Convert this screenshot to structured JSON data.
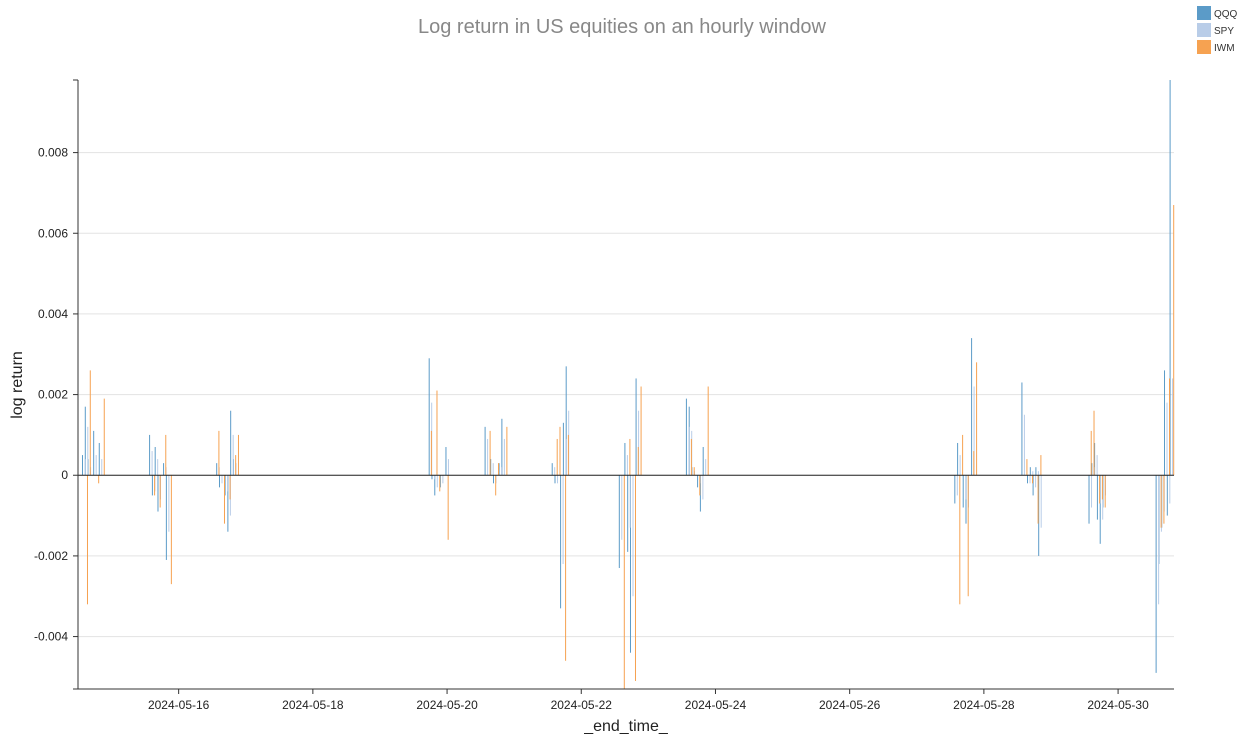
{
  "chart_data": {
    "type": "bar",
    "title": "Log return in US equities on an hourly window",
    "xlabel": "_end_time_",
    "ylabel": "log return",
    "xlim": [
      "2024-05-14T12:00",
      "2024-05-30T20:00"
    ],
    "ylim": [
      -0.0053,
      0.0098
    ],
    "grid": "horizontal",
    "legend_position": "top-right",
    "x_ticks": [
      "2024-05-16",
      "2024-05-18",
      "2024-05-20",
      "2024-05-22",
      "2024-05-24",
      "2024-05-26",
      "2024-05-28",
      "2024-05-30"
    ],
    "y_ticks": [
      {
        "value": -0.004,
        "label": "-0.004"
      },
      {
        "value": -0.002,
        "label": "-0.002"
      },
      {
        "value": 0,
        "label": "0"
      },
      {
        "value": 0.002,
        "label": "0.002"
      },
      {
        "value": 0.004,
        "label": "0.004"
      },
      {
        "value": 0.006,
        "label": "0.006"
      },
      {
        "value": 0.008,
        "label": "0.008"
      }
    ],
    "series": [
      {
        "name": "QQQ",
        "color": "#5b9bc8",
        "points": [
          [
            "2024-05-14T14:00",
            0.0005
          ],
          [
            "2024-05-14T15:00",
            0.0017
          ],
          [
            "2024-05-14T16:00",
            0.0004
          ],
          [
            "2024-05-14T18:00",
            0.0011
          ],
          [
            "2024-05-14T20:00",
            0.0008
          ],
          [
            "2024-05-15T14:00",
            0.001
          ],
          [
            "2024-05-15T15:00",
            -0.0005
          ],
          [
            "2024-05-15T16:00",
            0.0007
          ],
          [
            "2024-05-15T17:00",
            -0.0009
          ],
          [
            "2024-05-15T19:00",
            0.0003
          ],
          [
            "2024-05-15T20:00",
            -0.0021
          ],
          [
            "2024-05-16T14:00",
            0.0003
          ],
          [
            "2024-05-16T15:00",
            -0.0003
          ],
          [
            "2024-05-16T17:00",
            -0.0005
          ],
          [
            "2024-05-16T18:00",
            -0.0014
          ],
          [
            "2024-05-16T19:00",
            0.0016
          ],
          [
            "2024-05-16T20:00",
            0.0004
          ],
          [
            "2024-05-19T18:00",
            0.0029
          ],
          [
            "2024-05-19T19:00",
            -0.0001
          ],
          [
            "2024-05-19T20:00",
            -0.0005
          ],
          [
            "2024-05-19T22:00",
            -0.0003
          ],
          [
            "2024-05-20T00:00",
            0.0007
          ],
          [
            "2024-05-20T14:00",
            0.0012
          ],
          [
            "2024-05-20T16:00",
            0.0004
          ],
          [
            "2024-05-20T17:00",
            -0.0002
          ],
          [
            "2024-05-20T19:00",
            0.0003
          ],
          [
            "2024-05-20T20:00",
            0.0014
          ],
          [
            "2024-05-21T14:00",
            0.0003
          ],
          [
            "2024-05-21T15:00",
            -0.0002
          ],
          [
            "2024-05-21T17:00",
            -0.0033
          ],
          [
            "2024-05-21T18:00",
            0.0013
          ],
          [
            "2024-05-21T19:00",
            0.0027
          ],
          [
            "2024-05-22T14:00",
            -0.0023
          ],
          [
            "2024-05-22T16:00",
            0.0008
          ],
          [
            "2024-05-22T17:00",
            -0.0019
          ],
          [
            "2024-05-22T18:00",
            -0.0044
          ],
          [
            "2024-05-22T20:00",
            0.0024
          ],
          [
            "2024-05-23T14:00",
            0.0019
          ],
          [
            "2024-05-23T15:00",
            0.0017
          ],
          [
            "2024-05-23T16:00",
            0.0002
          ],
          [
            "2024-05-23T18:00",
            -0.0003
          ],
          [
            "2024-05-23T19:00",
            -0.0009
          ],
          [
            "2024-05-23T20:00",
            0.0007
          ],
          [
            "2024-05-27T14:00",
            -0.0007
          ],
          [
            "2024-05-27T15:00",
            0.0008
          ],
          [
            "2024-05-27T17:00",
            -0.0008
          ],
          [
            "2024-05-27T18:00",
            -0.0012
          ],
          [
            "2024-05-27T20:00",
            0.0034
          ],
          [
            "2024-05-28T14:00",
            0.0023
          ],
          [
            "2024-05-28T16:00",
            -0.0002
          ],
          [
            "2024-05-28T17:00",
            0.0002
          ],
          [
            "2024-05-28T18:00",
            -0.0005
          ],
          [
            "2024-05-28T19:00",
            0.0002
          ],
          [
            "2024-05-28T20:00",
            -0.002
          ],
          [
            "2024-05-29T14:00",
            -0.0012
          ],
          [
            "2024-05-29T15:00",
            0.0003
          ],
          [
            "2024-05-29T16:00",
            0.0008
          ],
          [
            "2024-05-29T17:00",
            -0.0011
          ],
          [
            "2024-05-29T18:00",
            -0.0017
          ],
          [
            "2024-05-29T19:00",
            -0.0008
          ],
          [
            "2024-05-30T14:00",
            -0.0049
          ],
          [
            "2024-05-30T15:00",
            -0.0022
          ],
          [
            "2024-05-30T16:00",
            -0.0013
          ],
          [
            "2024-05-30T17:00",
            0.0026
          ],
          [
            "2024-05-30T18:00",
            -0.001
          ],
          [
            "2024-05-30T19:00",
            0.0098
          ]
        ]
      },
      {
        "name": "SPY",
        "color": "#b9cde8",
        "points": [
          [
            "2024-05-14T14:30",
            0.0004
          ],
          [
            "2024-05-14T15:30",
            0.0012
          ],
          [
            "2024-05-14T16:30",
            0.0002
          ],
          [
            "2024-05-14T18:30",
            0.0005
          ],
          [
            "2024-05-14T20:30",
            0.0004
          ],
          [
            "2024-05-15T14:30",
            0.0006
          ],
          [
            "2024-05-15T15:30",
            -0.0004
          ],
          [
            "2024-05-15T16:30",
            0.0004
          ],
          [
            "2024-05-15T17:30",
            -0.0006
          ],
          [
            "2024-05-15T19:30",
            0.0002
          ],
          [
            "2024-05-15T20:30",
            -0.0014
          ],
          [
            "2024-05-16T14:30",
            0.0002
          ],
          [
            "2024-05-16T15:30",
            -0.0002
          ],
          [
            "2024-05-16T17:30",
            -0.0004
          ],
          [
            "2024-05-16T18:30",
            -0.001
          ],
          [
            "2024-05-16T19:30",
            0.001
          ],
          [
            "2024-05-16T20:30",
            0.0003
          ],
          [
            "2024-05-19T18:30",
            0.0018
          ],
          [
            "2024-05-19T19:30",
            -0.0001
          ],
          [
            "2024-05-19T20:30",
            -0.0003
          ],
          [
            "2024-05-19T22:30",
            -0.0002
          ],
          [
            "2024-05-20T00:30",
            0.0004
          ],
          [
            "2024-05-20T14:30",
            0.0009
          ],
          [
            "2024-05-20T16:30",
            0.0003
          ],
          [
            "2024-05-20T17:30",
            -0.0002
          ],
          [
            "2024-05-20T19:30",
            0.0002
          ],
          [
            "2024-05-20T20:30",
            0.0009
          ],
          [
            "2024-05-21T14:30",
            0.0002
          ],
          [
            "2024-05-21T15:30",
            -0.0002
          ],
          [
            "2024-05-21T17:30",
            -0.0022
          ],
          [
            "2024-05-21T18:30",
            0.0009
          ],
          [
            "2024-05-21T19:30",
            0.0016
          ],
          [
            "2024-05-22T14:30",
            -0.0016
          ],
          [
            "2024-05-22T16:30",
            0.0005
          ],
          [
            "2024-05-22T17:30",
            -0.0013
          ],
          [
            "2024-05-22T18:30",
            -0.003
          ],
          [
            "2024-05-22T20:30",
            0.0016
          ],
          [
            "2024-05-23T14:30",
            0.0012
          ],
          [
            "2024-05-23T15:30",
            0.0011
          ],
          [
            "2024-05-23T16:30",
            0.0001
          ],
          [
            "2024-05-23T18:30",
            -0.0002
          ],
          [
            "2024-05-23T19:30",
            -0.0006
          ],
          [
            "2024-05-23T20:30",
            0.0004
          ],
          [
            "2024-05-27T14:30",
            -0.0005
          ],
          [
            "2024-05-27T15:30",
            0.0005
          ],
          [
            "2024-05-27T17:30",
            -0.0006
          ],
          [
            "2024-05-27T18:30",
            -0.0008
          ],
          [
            "2024-05-27T20:30",
            0.0022
          ],
          [
            "2024-05-28T14:30",
            0.0015
          ],
          [
            "2024-05-28T16:30",
            -0.0002
          ],
          [
            "2024-05-28T17:30",
            0.0001
          ],
          [
            "2024-05-28T18:30",
            -0.0003
          ],
          [
            "2024-05-28T19:30",
            0.0001
          ],
          [
            "2024-05-28T20:30",
            -0.0013
          ],
          [
            "2024-05-29T14:30",
            -0.0008
          ],
          [
            "2024-05-29T15:30",
            0.0002
          ],
          [
            "2024-05-29T16:30",
            0.0005
          ],
          [
            "2024-05-29T17:30",
            -0.0007
          ],
          [
            "2024-05-29T18:30",
            -0.0011
          ],
          [
            "2024-05-29T19:30",
            -0.0005
          ],
          [
            "2024-05-30T14:30",
            -0.0032
          ],
          [
            "2024-05-30T15:30",
            -0.0014
          ],
          [
            "2024-05-30T16:30",
            -0.0009
          ],
          [
            "2024-05-30T17:30",
            0.0018
          ],
          [
            "2024-05-30T18:30",
            -0.0007
          ],
          [
            "2024-05-30T19:30",
            0.0024
          ]
        ]
      },
      {
        "name": "IWM",
        "color": "#f6a251",
        "points": [
          [
            "2024-05-14T15:00",
            -0.0032
          ],
          [
            "2024-05-14T16:00",
            0.0026
          ],
          [
            "2024-05-14T19:00",
            -0.0002
          ],
          [
            "2024-05-14T21:00",
            0.0019
          ],
          [
            "2024-05-15T15:00",
            -0.0005
          ],
          [
            "2024-05-15T17:00",
            -0.0008
          ],
          [
            "2024-05-15T19:00",
            0.001
          ],
          [
            "2024-05-15T21:00",
            -0.0027
          ],
          [
            "2024-05-16T14:00",
            0.0011
          ],
          [
            "2024-05-16T16:00",
            -0.0012
          ],
          [
            "2024-05-16T18:00",
            -0.0006
          ],
          [
            "2024-05-16T20:00",
            0.0005
          ],
          [
            "2024-05-16T21:00",
            0.001
          ],
          [
            "2024-05-19T18:00",
            0.0011
          ],
          [
            "2024-05-19T20:00",
            0.0021
          ],
          [
            "2024-05-19T21:00",
            -0.0004
          ],
          [
            "2024-05-20T00:00",
            -0.0016
          ],
          [
            "2024-05-20T15:00",
            0.0011
          ],
          [
            "2024-05-20T17:00",
            -0.0005
          ],
          [
            "2024-05-20T18:00",
            0.0003
          ],
          [
            "2024-05-20T21:00",
            0.0012
          ],
          [
            "2024-05-21T15:00",
            0.0009
          ],
          [
            "2024-05-21T16:00",
            0.0012
          ],
          [
            "2024-05-21T18:00",
            -0.0046
          ],
          [
            "2024-05-21T19:00",
            0.001
          ],
          [
            "2024-05-22T15:00",
            -0.0053
          ],
          [
            "2024-05-22T17:00",
            0.0009
          ],
          [
            "2024-05-22T19:00",
            -0.0051
          ],
          [
            "2024-05-22T20:00",
            0.0007
          ],
          [
            "2024-05-22T21:00",
            0.0022
          ],
          [
            "2024-05-23T15:00",
            0.0009
          ],
          [
            "2024-05-23T16:00",
            0.0002
          ],
          [
            "2024-05-23T18:00",
            -0.0005
          ],
          [
            "2024-05-23T21:00",
            0.0022
          ],
          [
            "2024-05-27T15:00",
            -0.0032
          ],
          [
            "2024-05-27T16:00",
            0.001
          ],
          [
            "2024-05-27T18:00",
            -0.003
          ],
          [
            "2024-05-27T20:00",
            0.0006
          ],
          [
            "2024-05-27T21:00",
            0.0028
          ],
          [
            "2024-05-28T15:00",
            0.0004
          ],
          [
            "2024-05-28T17:00",
            -0.0002
          ],
          [
            "2024-05-28T19:00",
            -0.0012
          ],
          [
            "2024-05-28T20:00",
            0.0005
          ],
          [
            "2024-05-29T14:00",
            0.0011
          ],
          [
            "2024-05-29T15:00",
            0.0016
          ],
          [
            "2024-05-29T17:00",
            -0.0007
          ],
          [
            "2024-05-29T18:00",
            -0.0006
          ],
          [
            "2024-05-29T19:00",
            -0.0008
          ],
          [
            "2024-05-30T15:00",
            -0.0013
          ],
          [
            "2024-05-30T16:00",
            -0.0012
          ],
          [
            "2024-05-30T18:00",
            0.0024
          ],
          [
            "2024-05-30T19:30",
            0.0067
          ]
        ]
      }
    ]
  }
}
